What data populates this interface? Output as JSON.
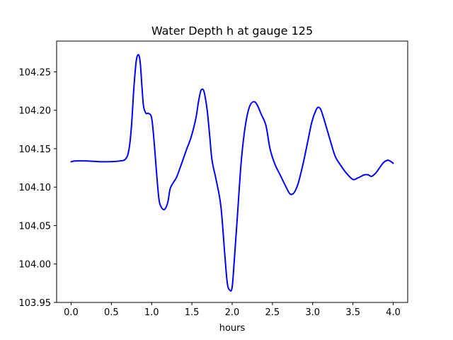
{
  "chart_data": {
    "type": "line",
    "title": "Water Depth h at gauge 125",
    "xlabel": "hours",
    "ylabel": "",
    "xlim": [
      -0.18,
      4.18
    ],
    "ylim": [
      103.95,
      104.29
    ],
    "xticks": [
      0.0,
      0.5,
      1.0,
      1.5,
      2.0,
      2.5,
      3.0,
      3.5,
      4.0
    ],
    "xtick_labels": [
      "0.0",
      "0.5",
      "1.0",
      "1.5",
      "2.0",
      "2.5",
      "3.0",
      "3.5",
      "4.0"
    ],
    "yticks": [
      103.95,
      104.0,
      104.05,
      104.1,
      104.15,
      104.2,
      104.25
    ],
    "ytick_labels": [
      "103.95",
      "104.00",
      "104.05",
      "104.10",
      "104.15",
      "104.20",
      "104.25"
    ],
    "grid": false,
    "series": [
      {
        "color": "#0000ff",
        "x": [
          0.0,
          0.05,
          0.2,
          0.4,
          0.6,
          0.68,
          0.72,
          0.75,
          0.78,
          0.81,
          0.84,
          0.86,
          0.88,
          0.9,
          0.93,
          0.96,
          1.0,
          1.03,
          1.06,
          1.09,
          1.12,
          1.16,
          1.2,
          1.23,
          1.27,
          1.31,
          1.37,
          1.43,
          1.49,
          1.55,
          1.58,
          1.61,
          1.64,
          1.66,
          1.69,
          1.72,
          1.75,
          1.8,
          1.86,
          1.91,
          1.94,
          1.97,
          2.0,
          2.03,
          2.07,
          2.11,
          2.15,
          2.19,
          2.23,
          2.28,
          2.32,
          2.36,
          2.42,
          2.47,
          2.53,
          2.6,
          2.67,
          2.72,
          2.77,
          2.82,
          2.88,
          2.94,
          2.99,
          3.04,
          3.07,
          3.1,
          3.13,
          3.17,
          3.22,
          3.28,
          3.35,
          3.42,
          3.5,
          3.56,
          3.6,
          3.64,
          3.69,
          3.73,
          3.78,
          3.83,
          3.88,
          3.93,
          3.96,
          4.0
        ],
        "y": [
          104.133,
          104.134,
          104.134,
          104.133,
          104.134,
          104.137,
          104.15,
          104.18,
          104.23,
          104.265,
          104.272,
          104.26,
          104.23,
          104.205,
          104.196,
          104.196,
          104.19,
          104.16,
          104.12,
          104.085,
          104.074,
          104.071,
          104.08,
          104.098,
          104.106,
          104.113,
          104.13,
          104.148,
          104.165,
          104.19,
          104.21,
          104.225,
          104.227,
          104.22,
          104.2,
          104.168,
          104.135,
          104.11,
          104.075,
          104.01,
          103.975,
          103.966,
          103.97,
          104.01,
          104.07,
          104.13,
          104.17,
          104.195,
          104.208,
          104.211,
          104.205,
          104.195,
          104.18,
          104.15,
          104.13,
          104.115,
          104.1,
          104.091,
          104.093,
          104.105,
          104.13,
          104.16,
          104.185,
          104.2,
          104.204,
          104.201,
          104.192,
          104.178,
          104.16,
          104.14,
          104.128,
          104.118,
          104.11,
          104.112,
          104.114,
          104.116,
          104.116,
          104.114,
          104.118,
          104.125,
          104.132,
          104.135,
          104.134,
          104.131
        ]
      }
    ]
  }
}
